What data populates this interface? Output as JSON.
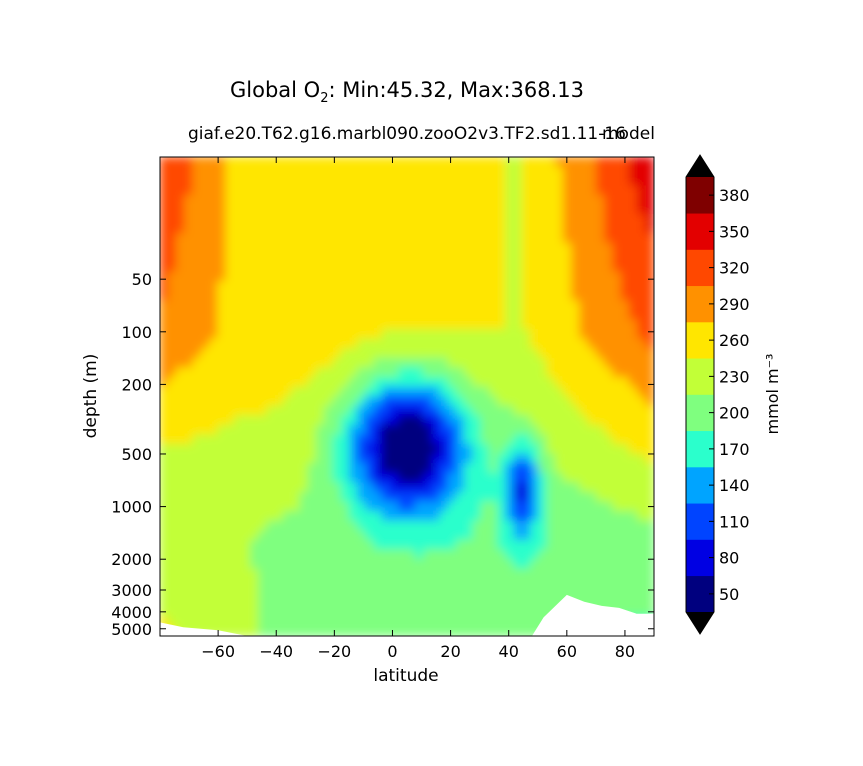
{
  "chart_data": {
    "type": "heatmap",
    "title_prefix": "Global O",
    "title_subscript": "2",
    "title_suffix": ": Min:45.32, Max:368.13",
    "subtitle": "giaf.e20.T62.g16.marbl090.zooO2v3.TF2.sd1.11-16",
    "subtitle_right": "model",
    "xlabel": "latitude",
    "ylabel": "depth (m)",
    "xlim": [
      -80,
      90
    ],
    "ylim": [
      5500,
      10
    ],
    "y_scale": "log",
    "xticks": [
      -60,
      -40,
      -20,
      0,
      20,
      40,
      60,
      80
    ],
    "xtick_labels": [
      "−60",
      "−40",
      "−20",
      "0",
      "20",
      "40",
      "60",
      "80"
    ],
    "yticks": [
      50,
      100,
      200,
      500,
      1000,
      2000,
      3000,
      4000,
      5000
    ],
    "colorbar": {
      "label": "mmol m⁻³",
      "levels": [
        50,
        80,
        110,
        140,
        170,
        200,
        230,
        260,
        290,
        320,
        350,
        380
      ],
      "colors": [
        "#00007f",
        "#0000e3",
        "#0044ff",
        "#00a4ff",
        "#2bffcc",
        "#7fff7f",
        "#c2ff37",
        "#ffe600",
        "#ff9100",
        "#ff4800",
        "#e30000",
        "#7f0000"
      ],
      "extend": "both"
    },
    "min": 45.32,
    "max": 368.13,
    "colors": {
      "under": "#000000",
      "over": "#000000",
      "missing": "#ffffff"
    }
  }
}
